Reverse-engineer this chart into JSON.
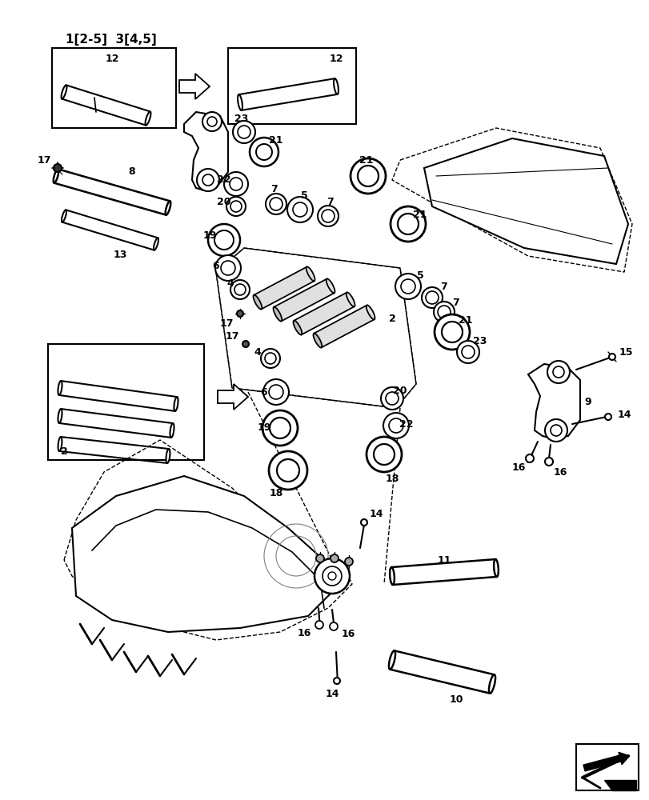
{
  "bg_color": "#ffffff",
  "lc": "#000000",
  "fig_w": 8.12,
  "fig_h": 10.0,
  "dpi": 100
}
